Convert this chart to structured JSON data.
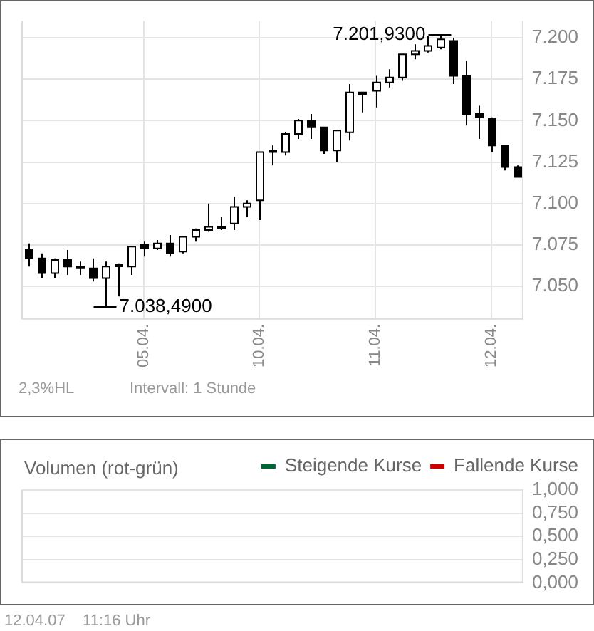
{
  "chart_data": [
    {
      "type": "candlestick",
      "categories": [
        null,
        null,
        null,
        null,
        null,
        null,
        null,
        null,
        null,
        "05.04.",
        null,
        null,
        null,
        null,
        null,
        null,
        null,
        null,
        "10.04.",
        null,
        null,
        null,
        null,
        null,
        null,
        null,
        null,
        "11.04.",
        null,
        null,
        null,
        null,
        null,
        null,
        null,
        null,
        "12.04.",
        null,
        null
      ],
      "ohlc": [
        [
          7072,
          7076,
          7062,
          7067
        ],
        [
          7067,
          7070,
          7055,
          7058
        ],
        [
          7058,
          7067,
          7055,
          7066
        ],
        [
          7066,
          7072,
          7057,
          7062
        ],
        [
          7062,
          7065,
          7057,
          7061
        ],
        [
          7061,
          7067,
          7053,
          7055
        ],
        [
          7055,
          7065,
          7038.49,
          7062
        ],
        [
          7063,
          7064,
          7044,
          7063
        ],
        [
          7062,
          7074,
          7057,
          7074
        ],
        [
          7075,
          7077,
          7068,
          7073
        ],
        [
          7073,
          7078,
          7072,
          7076
        ],
        [
          7076,
          7081,
          7068,
          7070
        ],
        [
          7071,
          7080,
          7070,
          7080
        ],
        [
          7080,
          7085,
          7077,
          7084
        ],
        [
          7084,
          7100,
          7083,
          7086
        ],
        [
          7086,
          7092,
          7084,
          7085
        ],
        [
          7088,
          7104,
          7084,
          7098
        ],
        [
          7098,
          7102,
          7092,
          7100
        ],
        [
          7102,
          7131,
          7090,
          7131
        ],
        [
          7132,
          7135,
          7123,
          7131
        ],
        [
          7131,
          7143,
          7129,
          7142
        ],
        [
          7142,
          7151,
          7139,
          7150
        ],
        [
          7150,
          7154,
          7139,
          7146
        ],
        [
          7146,
          7146,
          7130,
          7132
        ],
        [
          7132,
          7144,
          7125,
          7144
        ],
        [
          7143,
          7172,
          7138,
          7167
        ],
        [
          7167,
          7167,
          7155,
          7166
        ],
        [
          7168,
          7177,
          7158,
          7173
        ],
        [
          7173,
          7181,
          7170,
          7176
        ],
        [
          7176,
          7190,
          7174,
          7190
        ],
        [
          7190,
          7196,
          7187,
          7192
        ],
        [
          7192,
          7201,
          7191,
          7195
        ],
        [
          7194,
          7201.93,
          7193,
          7199
        ],
        [
          7198,
          7200,
          7172,
          7177
        ],
        [
          7177,
          7186,
          7147,
          7154
        ],
        [
          7154,
          7159,
          7139,
          7152
        ],
        [
          7151,
          7152,
          7131,
          7135
        ],
        [
          7135,
          7135,
          7120,
          7122
        ],
        [
          7122,
          7123,
          7116,
          7116
        ]
      ],
      "ylim": [
        7030,
        7210
      ],
      "yticks": [
        {
          "value": 7050,
          "label": "7.050"
        },
        {
          "value": 7075,
          "label": "7.075"
        },
        {
          "value": 7100,
          "label": "7.100"
        },
        {
          "value": 7125,
          "label": "7.125"
        },
        {
          "value": 7150,
          "label": "7.150"
        },
        {
          "value": 7175,
          "label": "7.175"
        },
        {
          "value": 7200,
          "label": "7.200"
        }
      ],
      "grid": true,
      "annotations": [
        "7.201,9300",
        "7.038,4900",
        "2,3%HL",
        "Intervall: 1 Stunde"
      ]
    },
    {
      "type": "bar",
      "title": "Volumen (rot-grün)",
      "categories": [
        null,
        null,
        null,
        null,
        null,
        null,
        null,
        null,
        null,
        null,
        null,
        null,
        null,
        null,
        null,
        null,
        null,
        null,
        null,
        null,
        null,
        null,
        null,
        null,
        null,
        null,
        null,
        null,
        null,
        null,
        null,
        null,
        null,
        null,
        null,
        null,
        null,
        null,
        null
      ],
      "series": [
        {
          "name": "Steigende Kurse",
          "color": "#006633",
          "values": [
            null,
            null,
            null,
            null,
            null,
            null,
            null,
            null,
            null,
            null,
            null,
            null,
            null,
            null,
            null,
            null,
            null,
            null,
            null,
            null,
            null,
            null,
            null,
            null,
            null,
            null,
            null,
            null,
            null,
            null,
            null,
            null,
            null,
            null,
            null,
            null,
            null,
            null,
            null
          ]
        },
        {
          "name": "Fallende Kurse",
          "color": "#cc0000",
          "values": [
            null,
            null,
            null,
            null,
            null,
            null,
            null,
            null,
            null,
            null,
            null,
            null,
            null,
            null,
            null,
            null,
            null,
            null,
            null,
            null,
            null,
            null,
            null,
            null,
            null,
            null,
            null,
            null,
            null,
            null,
            null,
            null,
            null,
            null,
            null,
            null,
            null,
            null,
            null
          ]
        }
      ],
      "ylim": [
        0,
        1
      ],
      "yticks": [
        {
          "value": 0,
          "label": "0,000"
        },
        {
          "value": 0.25,
          "label": "0,250"
        },
        {
          "value": 0.5,
          "label": "0,500"
        },
        {
          "value": 0.75,
          "label": "0,750"
        },
        {
          "value": 1,
          "label": "1,000"
        }
      ],
      "grid": true,
      "legend": "top right",
      "tick_labels": "y",
      "annotations": [
        "12.04.07    11:16 Uhr"
      ]
    }
  ]
}
